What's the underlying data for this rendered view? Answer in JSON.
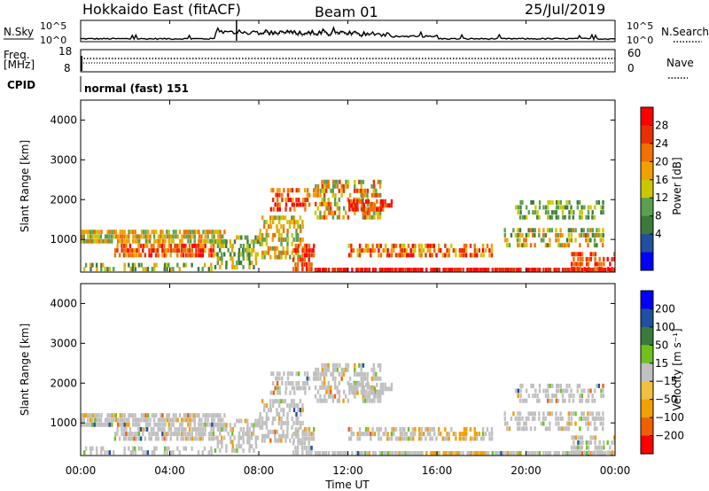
{
  "header": {
    "station": "Hokkaido East (fitACF)",
    "beam": "Beam 01",
    "date": "25/Jul/2019"
  },
  "noise_panel": {
    "left_label": "N.Sky",
    "right_label": "N.Search",
    "left_ticks": [
      "10^5",
      "10^0"
    ],
    "right_ticks": [
      "10^5",
      "10^0"
    ]
  },
  "freq_panel": {
    "left_label": "Freq.",
    "unit_label": "[MHz]",
    "left_ticks": [
      "18",
      "8"
    ],
    "right_label": "Nave",
    "right_ticks": [
      "60",
      "0"
    ]
  },
  "cpid": {
    "label": "CPID",
    "value": "normal (fast) 151"
  },
  "colors": {
    "power": [
      "#0000ff",
      "#2050a0",
      "#3c7a3c",
      "#5aa050",
      "#c8c800",
      "#f0a000",
      "#f07000",
      "#e83000",
      "#ff0000"
    ],
    "velocity": [
      "#ff0000",
      "#f06000",
      "#f0a000",
      "#f0c040",
      "#c0c0c0",
      "#70c020",
      "#3c7a3c",
      "#2050a0",
      "#0000ff"
    ],
    "noise_trace": "#000000"
  },
  "chart_data": [
    {
      "type": "heatmap",
      "title": "Power",
      "x": [
        "00:00",
        "04:00",
        "08:00",
        "12:00",
        "16:00",
        "20:00",
        "00:00"
      ],
      "xlabel": "Time UT",
      "ylabel": "Slant Range [km]",
      "yticks": [
        1000,
        2000,
        3000,
        4000
      ],
      "ylim": [
        180,
        4500
      ],
      "colorbar": {
        "label": "Power [dB]",
        "ticks": [
          4,
          8,
          12,
          16,
          20,
          24,
          28
        ]
      }
    },
    {
      "type": "heatmap",
      "title": "Velocity",
      "x": [
        "00:00",
        "04:00",
        "08:00",
        "12:00",
        "16:00",
        "20:00",
        "00:00"
      ],
      "xlabel": "Time UT",
      "ylabel": "Slant Range [km]",
      "yticks": [
        1000,
        2000,
        3000,
        4000
      ],
      "ylim": [
        180,
        4500
      ],
      "colorbar": {
        "label": "Velocity [m s⁻¹]",
        "ticks": [
          200,
          100,
          50,
          15,
          -15,
          -50,
          -100,
          -200
        ],
        "tick_labels": [
          "200",
          "100",
          "50",
          "15",
          "−15",
          "−50",
          "−100",
          "−200"
        ]
      }
    }
  ]
}
